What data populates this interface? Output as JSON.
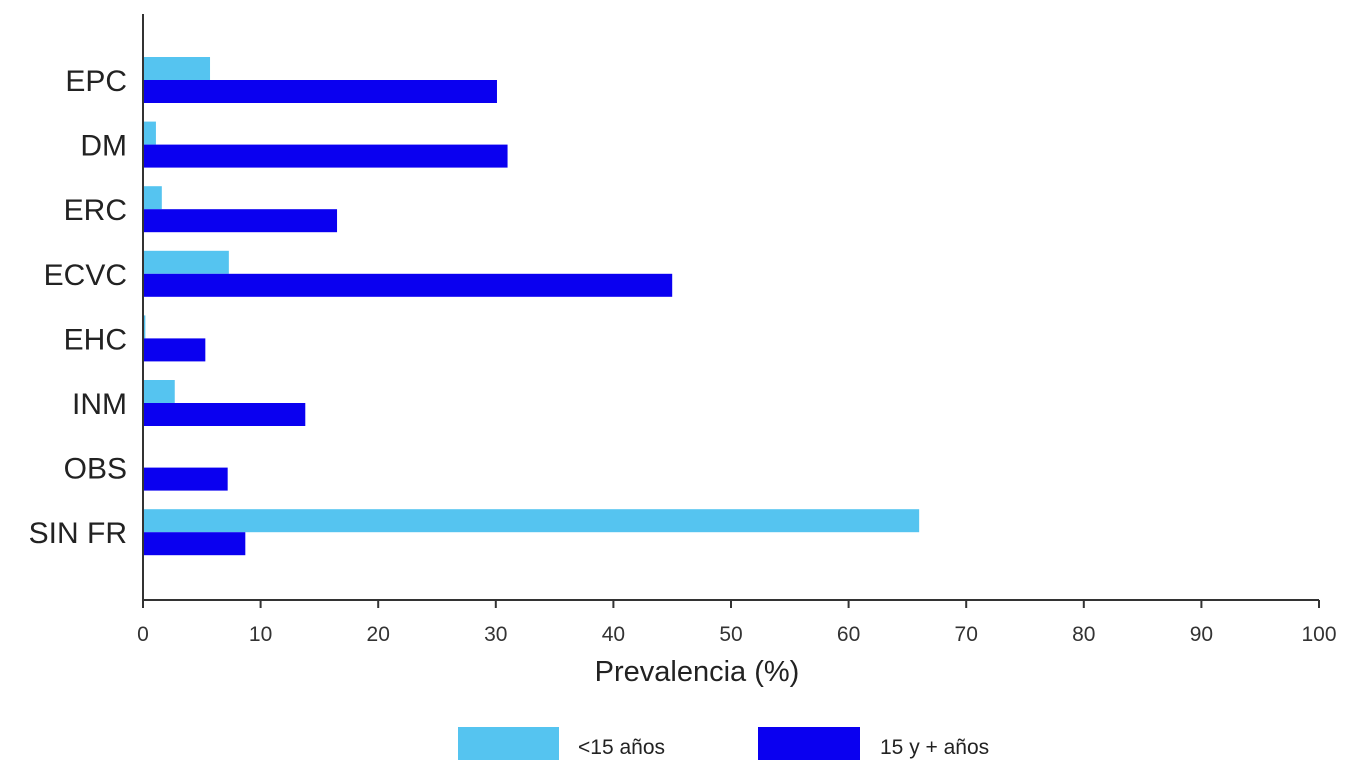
{
  "chart_data": {
    "type": "bar",
    "orientation": "horizontal",
    "categories": [
      "EPC",
      "DM",
      "ERC",
      "ECVC",
      "EHC",
      "INM",
      "OBS",
      "SIN FR"
    ],
    "series": [
      {
        "name": "<15 años",
        "color": "#55c4f0",
        "values": [
          5.7,
          1.1,
          1.6,
          7.3,
          0.2,
          2.7,
          0,
          66
        ]
      },
      {
        "name": "15 y + años",
        "color": "#0a00f0",
        "values": [
          30.1,
          31.0,
          16.5,
          45.0,
          5.3,
          13.8,
          7.2,
          8.7
        ]
      }
    ],
    "xlabel": "Prevalencia (%)",
    "ylabel": "",
    "xlim": [
      0,
      100
    ],
    "xticks": [
      0,
      10,
      20,
      30,
      40,
      50,
      60,
      70,
      80,
      90,
      100
    ],
    "grid": false,
    "legend_position": "bottom"
  }
}
